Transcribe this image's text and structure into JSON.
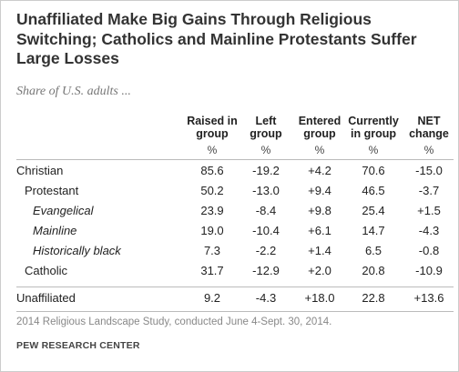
{
  "header": {
    "title_lines": [
      "Unaffiliated Make Big Gains Through Religious",
      "Switching; Catholics and Mainline Protestants Suffer",
      "Large Losses"
    ],
    "subtitle": "Share of U.S. adults ..."
  },
  "table": {
    "columns": [
      {
        "lines": [
          "Raised in",
          "group"
        ],
        "unit": "%"
      },
      {
        "lines": [
          "Left",
          "group"
        ],
        "unit": "%"
      },
      {
        "lines": [
          "Entered",
          "group"
        ],
        "unit": "%"
      },
      {
        "lines": [
          "Currently",
          "in group"
        ],
        "unit": "%"
      },
      {
        "lines": [
          "NET",
          "change"
        ],
        "unit": "%"
      }
    ],
    "rows": [
      {
        "label": "Christian",
        "values": [
          "85.6",
          "-19.2",
          "+4.2",
          "70.6",
          "-15.0"
        ]
      },
      {
        "label": "Protestant",
        "values": [
          "50.2",
          "-13.0",
          "+9.4",
          "46.5",
          "-3.7"
        ]
      },
      {
        "label": "Evangelical",
        "values": [
          "23.9",
          "-8.4",
          "+9.8",
          "25.4",
          "+1.5"
        ]
      },
      {
        "label": "Mainline",
        "values": [
          "19.0",
          "-10.4",
          "+6.1",
          "14.7",
          "-4.3"
        ]
      },
      {
        "label": "Historically black",
        "values": [
          "7.3",
          "-2.2",
          "+1.4",
          "6.5",
          "-0.8"
        ]
      },
      {
        "label": "Catholic",
        "values": [
          "31.7",
          "-12.9",
          "+2.0",
          "20.8",
          "-10.9"
        ]
      },
      {
        "label": "Unaffiliated",
        "values": [
          "9.2",
          "-4.3",
          "+18.0",
          "22.8",
          "+13.6"
        ]
      }
    ]
  },
  "footer": {
    "note": "2014 Religious Landscape Study, conducted June 4-Sept. 30, 2014.",
    "source": "PEW RESEARCH CENTER"
  }
}
